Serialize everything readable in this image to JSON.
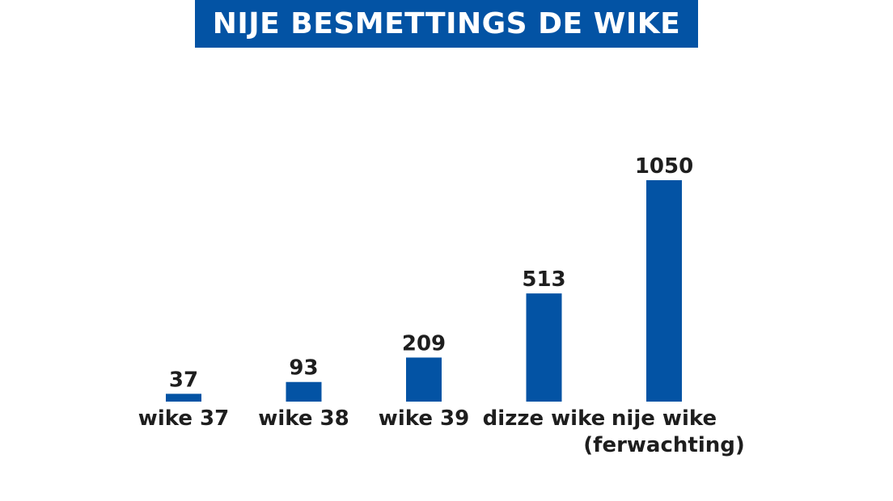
{
  "colors": {
    "accent": "#0353a4",
    "text": "#1e1e1e"
  },
  "chart_data": {
    "type": "bar",
    "title": "NIJE BESMETTINGS DE WIKE",
    "categories": [
      [
        "wike 37"
      ],
      [
        "wike 38"
      ],
      [
        "wike 39"
      ],
      [
        "dizze wike"
      ],
      [
        "nije wike",
        "(ferwachting)"
      ]
    ],
    "values": [
      37,
      93,
      209,
      513,
      1050
    ],
    "ylim": [
      0,
      1050
    ],
    "grid": false,
    "legend": "none"
  }
}
